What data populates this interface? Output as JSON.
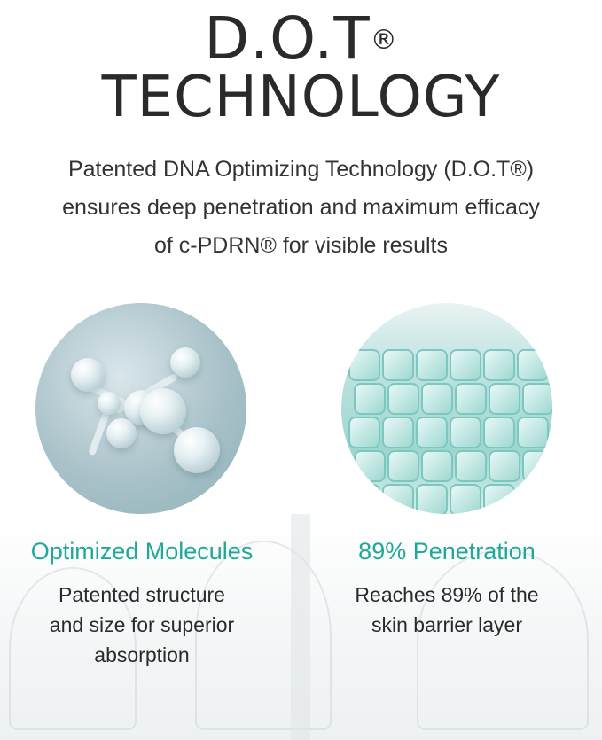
{
  "header": {
    "title_line1": "D.O.T",
    "title_reg": "®",
    "title_line2": "TECHNOLOGY"
  },
  "intro": {
    "lines": [
      "Patented DNA Optimizing Technology (D.O.T®)",
      "ensures deep penetration and maximum efficacy",
      "of c-PDRN® for visible results"
    ]
  },
  "features": [
    {
      "image": "molecule-image",
      "title": "Optimized Molecules",
      "lines": [
        "Patented structure",
        "and size for superior",
        "absorption"
      ]
    },
    {
      "image": "skin-cells-image",
      "title": "89% Penetration",
      "lines": [
        "Reaches 89% of the",
        "skin barrier layer"
      ]
    }
  ],
  "colors": {
    "accent": "#1fa898",
    "text": "#2a2a2a"
  }
}
